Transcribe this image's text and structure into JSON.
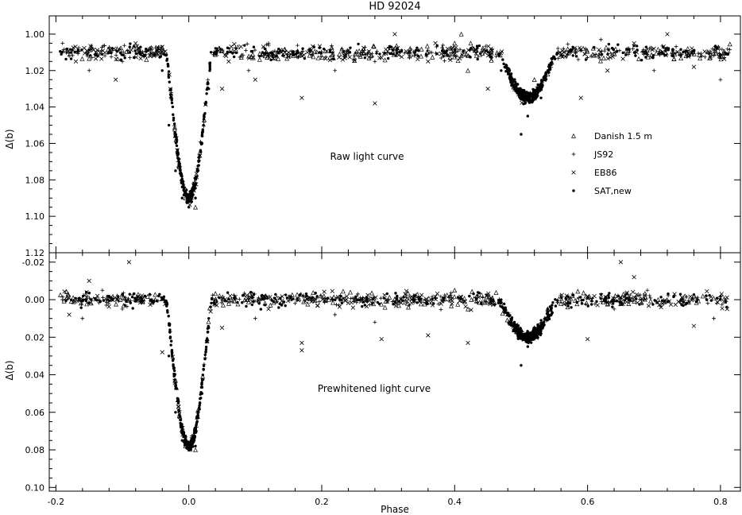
{
  "chart_data": {
    "type": "scatter",
    "title": "HD 92024",
    "xlabel": "Phase",
    "xlim": [
      -0.21,
      0.83
    ],
    "xticks": [
      -0.2,
      0.0,
      0.2,
      0.4,
      0.6,
      0.8
    ],
    "xtick_labels": [
      "-0.2",
      "0.0",
      "0.2",
      "0.4",
      "0.6",
      "0.8"
    ],
    "grid": false,
    "legend_position": "right",
    "legend": [
      {
        "symbol": "triangle",
        "label": "Danish 1.5 m"
      },
      {
        "symbol": "plus",
        "label": "JS92"
      },
      {
        "symbol": "cross",
        "label": "EB86"
      },
      {
        "symbol": "dot",
        "label": "SAT,new"
      }
    ],
    "panels": [
      {
        "name": "raw",
        "annotation": "Raw light curve",
        "ylabel": "Δ(b)",
        "ylim": [
          0.99,
          1.12
        ],
        "y_inverted": true,
        "yticks": [
          1.0,
          1.02,
          1.04,
          1.06,
          1.08,
          1.1,
          1.12
        ],
        "ytick_labels": [
          "1.00",
          "1.02",
          "1.04",
          "1.06",
          "1.08",
          "1.10",
          "1.12"
        ],
        "baseline": 1.01,
        "eclipses": [
          {
            "center": 0.0,
            "depth_to": 1.09,
            "halfwidth": 0.035
          },
          {
            "center": 0.51,
            "depth_to": 1.035,
            "halfwidth": 0.045
          }
        ],
        "series": [
          {
            "name": "Danish 1.5 m",
            "symbol": "triangle",
            "points": [
              [
                0.4,
                1.005
              ],
              [
                0.41,
                1.012
              ],
              [
                0.42,
                1.02
              ],
              [
                0.52,
                1.025
              ],
              [
                0.54,
                1.022
              ],
              [
                0.005,
                1.085
              ],
              [
                0.01,
                1.095
              ],
              [
                -0.005,
                1.09
              ],
              [
                0.41,
                1.0
              ]
            ]
          },
          {
            "name": "JS92",
            "symbol": "plus",
            "points": [
              [
                -0.19,
                1.005
              ],
              [
                -0.18,
                1.012
              ],
              [
                -0.15,
                1.02
              ],
              [
                -0.12,
                1.008
              ],
              [
                -0.1,
                1.015
              ],
              [
                0.07,
                1.01
              ],
              [
                0.09,
                1.02
              ],
              [
                0.12,
                1.005
              ],
              [
                0.17,
                1.01
              ],
              [
                0.22,
                1.02
              ],
              [
                0.28,
                1.015
              ],
              [
                0.33,
                1.01
              ],
              [
                0.62,
                1.003
              ],
              [
                0.66,
                1.008
              ],
              [
                0.7,
                1.02
              ],
              [
                0.74,
                1.012
              ],
              [
                0.78,
                1.01
              ],
              [
                0.8,
                1.025
              ]
            ]
          },
          {
            "name": "EB86",
            "symbol": "cross",
            "points": [
              [
                -0.17,
                1.015
              ],
              [
                -0.14,
                1.01
              ],
              [
                -0.11,
                1.025
              ],
              [
                -0.08,
                1.005
              ],
              [
                0.05,
                1.03
              ],
              [
                0.06,
                1.015
              ],
              [
                0.1,
                1.025
              ],
              [
                0.15,
                1.01
              ],
              [
                0.17,
                1.035
              ],
              [
                0.28,
                1.038
              ],
              [
                0.31,
                1.0
              ],
              [
                0.36,
                1.015
              ],
              [
                0.45,
                1.03
              ],
              [
                0.59,
                1.035
              ],
              [
                0.63,
                1.02
              ],
              [
                0.67,
                1.005
              ],
              [
                0.72,
                1.0
              ],
              [
                0.76,
                1.018
              ]
            ]
          },
          {
            "name": "SAT,new",
            "symbol": "dot",
            "points": [
              [
                -0.04,
                1.02
              ],
              [
                -0.03,
                1.05
              ],
              [
                -0.02,
                1.075
              ],
              [
                -0.01,
                1.09
              ],
              [
                0.0,
                1.095
              ],
              [
                0.01,
                1.09
              ],
              [
                0.02,
                1.06
              ],
              [
                0.03,
                1.03
              ],
              [
                0.47,
                1.02
              ],
              [
                0.49,
                1.03
              ],
              [
                0.51,
                1.045
              ],
              [
                0.53,
                1.035
              ],
              [
                0.54,
                1.02
              ],
              [
                0.5,
                1.055
              ]
            ]
          }
        ]
      },
      {
        "name": "prewhitened",
        "annotation": "Prewhitened light curve",
        "ylabel": "Δ(b)",
        "ylim": [
          -0.025,
          0.102
        ],
        "y_inverted": true,
        "yticks": [
          -0.02,
          0.0,
          0.02,
          0.04,
          0.06,
          0.08,
          0.1
        ],
        "ytick_labels": [
          "-0.02",
          "0.00",
          "0.02",
          "0.04",
          "0.06",
          "0.08",
          "0.10"
        ],
        "baseline": 0.0,
        "eclipses": [
          {
            "center": 0.0,
            "depth_to": 0.078,
            "halfwidth": 0.035
          },
          {
            "center": 0.51,
            "depth_to": 0.02,
            "halfwidth": 0.045
          }
        ],
        "series": [
          {
            "name": "Danish 1.5 m",
            "symbol": "triangle",
            "points": [
              [
                0.4,
                -0.005
              ],
              [
                0.41,
                0.0
              ],
              [
                0.42,
                0.005
              ],
              [
                0.52,
                0.015
              ],
              [
                0.54,
                0.005
              ],
              [
                0.005,
                0.075
              ],
              [
                0.01,
                0.08
              ],
              [
                -0.005,
                0.078
              ]
            ]
          },
          {
            "name": "JS92",
            "symbol": "plus",
            "points": [
              [
                -0.19,
                0.0
              ],
              [
                -0.16,
                0.01
              ],
              [
                -0.13,
                -0.005
              ],
              [
                -0.1,
                0.005
              ],
              [
                0.07,
                0.0
              ],
              [
                0.1,
                0.01
              ],
              [
                0.16,
                0.002
              ],
              [
                0.22,
                0.008
              ],
              [
                0.28,
                0.012
              ],
              [
                0.35,
                0.0
              ],
              [
                0.64,
                0.005
              ],
              [
                0.69,
                -0.005
              ],
              [
                0.74,
                0.002
              ],
              [
                0.79,
                0.01
              ]
            ]
          },
          {
            "name": "EB86",
            "symbol": "cross",
            "points": [
              [
                -0.09,
                -0.02
              ],
              [
                -0.18,
                0.008
              ],
              [
                -0.15,
                -0.01
              ],
              [
                -0.04,
                0.028
              ],
              [
                0.05,
                0.015
              ],
              [
                0.12,
                0.005
              ],
              [
                0.17,
                0.023
              ],
              [
                0.17,
                0.027
              ],
              [
                0.29,
                0.021
              ],
              [
                0.36,
                0.019
              ],
              [
                0.42,
                0.023
              ],
              [
                0.6,
                0.021
              ],
              [
                0.65,
                -0.02
              ],
              [
                0.67,
                -0.012
              ],
              [
                0.76,
                0.014
              ],
              [
                0.81,
                0.005
              ]
            ]
          },
          {
            "name": "SAT,new",
            "symbol": "dot",
            "points": [
              [
                -0.04,
                0.0
              ],
              [
                -0.03,
                0.03
              ],
              [
                -0.02,
                0.06
              ],
              [
                -0.01,
                0.075
              ],
              [
                0.0,
                0.08
              ],
              [
                0.01,
                0.078
              ],
              [
                0.02,
                0.05
              ],
              [
                0.03,
                0.01
              ],
              [
                0.47,
                0.0
              ],
              [
                0.49,
                0.012
              ],
              [
                0.51,
                0.025
              ],
              [
                0.53,
                0.018
              ],
              [
                0.54,
                0.005
              ],
              [
                0.5,
                0.035
              ]
            ]
          }
        ]
      }
    ]
  }
}
